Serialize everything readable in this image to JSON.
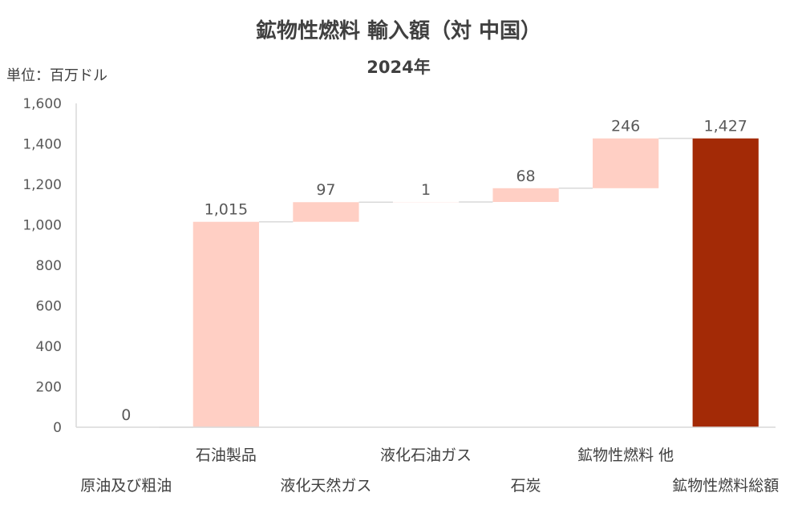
{
  "chart_data": {
    "type": "bar",
    "subtype": "waterfall",
    "title": "鉱物性燃料 輸入額（対 中国）",
    "subtitle": "2024年",
    "unit_label": "単位：百万ドル",
    "categories": [
      "原油及び粗油",
      "石油製品",
      "液化天然ガス",
      "液化石油ガス",
      "石炭",
      "鉱物性燃料 他",
      "鉱物性燃料総額"
    ],
    "values": [
      0,
      1015,
      97,
      1,
      68,
      246,
      1427
    ],
    "value_labels": [
      "0",
      "1,015",
      "97",
      "1",
      "68",
      "246",
      "1,427"
    ],
    "total_index": 6,
    "ylim": [
      0,
      1600
    ],
    "yticks": [
      0,
      200,
      400,
      600,
      800,
      1000,
      1200,
      1400,
      1600
    ],
    "ytick_labels": [
      "0",
      "200",
      "400",
      "600",
      "800",
      "1,000",
      "1,200",
      "1,400",
      "1,600"
    ],
    "colors": {
      "increment": "#FFCFC4",
      "total": "#A32A06",
      "connector": "#D9D9D9",
      "axis": "#D9D9D9"
    },
    "grid": false,
    "legend": "none"
  }
}
